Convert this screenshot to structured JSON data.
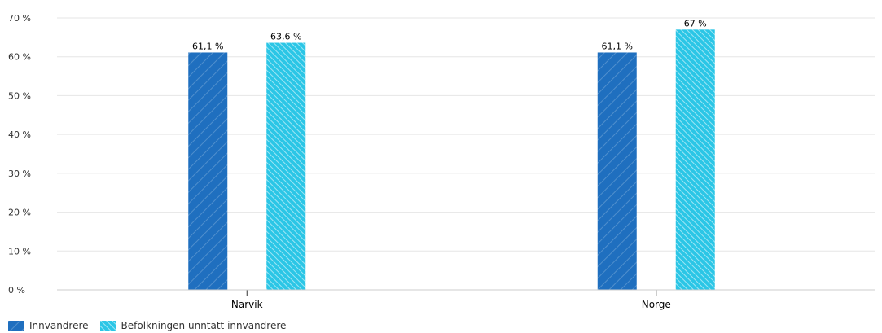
{
  "chart_data": {
    "type": "bar",
    "categories": [
      "Narvik",
      "Norge"
    ],
    "series": [
      {
        "name": "Innvandrere",
        "values": [
          61.1,
          61.1
        ],
        "labels": [
          "61,1 %",
          "61,1 %"
        ],
        "color": "#1f6fbf",
        "pattern": "hatch-sparse"
      },
      {
        "name": "Befolkningen unntatt innvandrere",
        "values": [
          63.6,
          67
        ],
        "labels": [
          "63,6 %",
          "67 %"
        ],
        "color": "#2bc6e6",
        "pattern": "hatch-dense"
      }
    ],
    "ylim": [
      0,
      70
    ],
    "yticks": [
      0,
      10,
      20,
      30,
      40,
      50,
      60,
      70
    ],
    "ytick_labels": [
      "0 %",
      "10 %",
      "20 %",
      "30 %",
      "40 %",
      "50 %",
      "60 %",
      "70 %"
    ],
    "title": "",
    "xlabel": "",
    "ylabel": "",
    "grid": true,
    "legend_position": "bottom-left"
  }
}
